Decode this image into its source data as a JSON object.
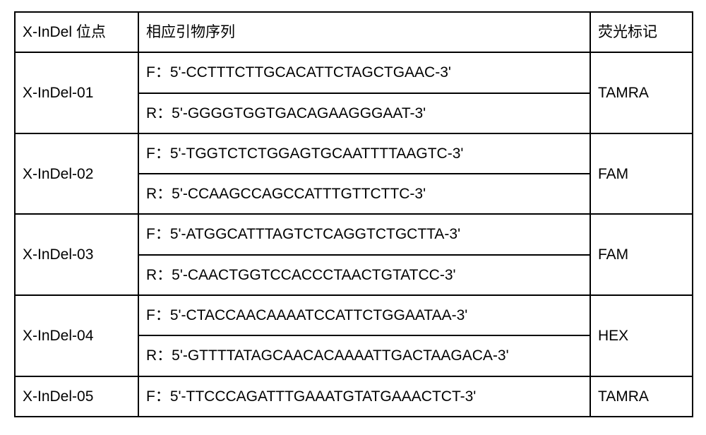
{
  "table": {
    "border_color": "#000000",
    "background_color": "#ffffff",
    "text_color": "#000000",
    "font_size": 21,
    "header": {
      "locus": "X-InDel 位点",
      "primer": "相应引物序列",
      "label": "荧光标记"
    },
    "rows": [
      {
        "locus": "X-InDel-01",
        "primer_f": "F：5'-CCTTTCTTGCACATTCTAGCTGAAC-3'",
        "primer_r": "R：5'-GGGGTGGTGACAGAAGGGAAT-3'",
        "label": "TAMRA"
      },
      {
        "locus": "X-InDel-02",
        "primer_f": "F：5'-TGGTCTCTGGAGTGCAATTTTAAGTC-3'",
        "primer_r": "R：5'-CCAAGCCAGCCATTTGTTCTTC-3'",
        "label": "FAM"
      },
      {
        "locus": "X-InDel-03",
        "primer_f": "F：5'-ATGGCATTTAGTCTCAGGTCTGCTTA-3'",
        "primer_r": "R：5'-CAACTGGTCCACCCTAACTGTATCC-3'",
        "label": "FAM"
      },
      {
        "locus": "X-InDel-04",
        "primer_f": "F：5'-CTACCAACAAAATCCATTCTGGAATAA-3'",
        "primer_r": "R：5'-GTTTTATAGCAACACAAAATTGACTAAGACA-3'",
        "label": "HEX"
      },
      {
        "locus": "X-InDel-05",
        "primer_f": "F：5'-TTCCCAGATTTGAAATGTATGAAACTCT-3'",
        "label": "TAMRA"
      }
    ]
  }
}
